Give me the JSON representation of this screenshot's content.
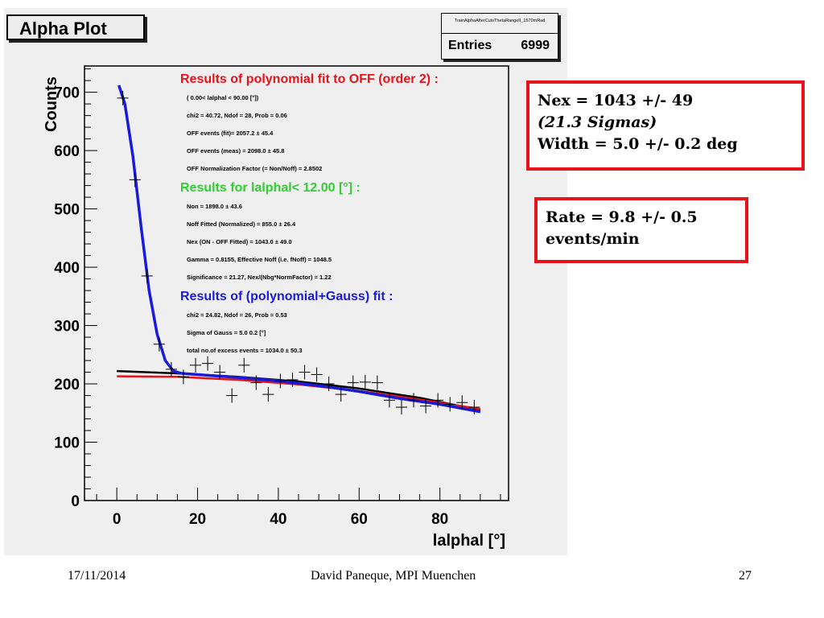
{
  "chart_data": {
    "type": "scatter",
    "title": "Alpha Plot",
    "xlabel": "lalphal  [°]",
    "ylabel": "Counts",
    "xlim": [
      -8,
      97
    ],
    "ylim": [
      0,
      745
    ],
    "xticks": [
      "0",
      "20",
      "40",
      "60",
      "80"
    ],
    "yticks": [
      "0",
      "100",
      "200",
      "300",
      "400",
      "500",
      "600",
      "700"
    ],
    "xtick_values": [
      0,
      20,
      40,
      60,
      80
    ],
    "ytick_values": [
      0,
      100,
      200,
      300,
      400,
      500,
      600,
      700
    ],
    "stats": {
      "name": "TrainAlphaAfterCutsThetaRangeII_1570mRad",
      "entries_label": "Entries",
      "entries_value": "6999"
    },
    "points": {
      "x": [
        1.5,
        4.5,
        7.5,
        10.5,
        13.5,
        16.5,
        19.5,
        22.5,
        25.5,
        28.5,
        31.5,
        34.5,
        37.5,
        40.5,
        43.5,
        46.5,
        49.5,
        52.5,
        55.5,
        58.5,
        61.5,
        64.5,
        67.5,
        70.5,
        73.5,
        76.5,
        79.5,
        82.5,
        85.5,
        88.5
      ],
      "y": [
        690,
        550,
        385,
        268,
        225,
        212,
        232,
        235,
        220,
        180,
        232,
        202,
        182,
        205,
        207,
        220,
        216,
        200,
        182,
        202,
        203,
        202,
        172,
        160,
        172,
        162,
        172,
        165,
        168,
        160
      ]
    },
    "curves": [
      {
        "name": "black",
        "color": "#000000",
        "x": [
          0,
          15,
          30,
          45,
          60,
          75,
          90
        ],
        "y": [
          222,
          218,
          212,
          204,
          192,
          176,
          155
        ]
      },
      {
        "name": "red",
        "color": "#e8121a",
        "x": [
          0,
          15,
          30,
          45,
          60,
          75,
          90
        ],
        "y": [
          213,
          212,
          207,
          199,
          188,
          173,
          157
        ]
      },
      {
        "name": "blue",
        "color": "#1a1ad9",
        "x": [
          0.5,
          2,
          4,
          6,
          8,
          10,
          12,
          14,
          16,
          18,
          22,
          30,
          40,
          50,
          60,
          70,
          80,
          90
        ],
        "y": [
          712,
          680,
          590,
          470,
          360,
          285,
          240,
          222,
          218,
          217,
          215,
          211,
          205,
          197,
          187,
          175,
          165,
          152
        ]
      }
    ],
    "annotations": [
      {
        "text": "Results of polynomial fit to OFF (order  2) :",
        "color": "#e8121a",
        "size": "heading"
      },
      {
        "text": "(  0.00< lalphal < 90.00 [°])",
        "color": "#000000",
        "size": "small"
      },
      {
        "text": "chi2 =   40.72,  Ndof =  28,  Prob =  0.06",
        "color": "#000000",
        "size": "small"
      },
      {
        "text": "OFF events (fit)=  2057.2 ±    45.4",
        "color": "#000000",
        "size": "small"
      },
      {
        "text": "OFF events (meas) =  2098.0 ±    45.8",
        "color": "#000000",
        "size": "small"
      },
      {
        "text": "OFF Normalization Factor (= Non/Noff) = 2.8502",
        "color": "#000000",
        "size": "small"
      },
      {
        "text": "Results for lalphal<  12.00 [°] :",
        "color": "#33cc33",
        "size": "heading"
      },
      {
        "text": "Non =  1898.0 ±    43.6",
        "color": "#000000",
        "size": "small"
      },
      {
        "text": "Noff Fitted (Normalized) =   855.0 ±    26.4",
        "color": "#000000",
        "size": "small"
      },
      {
        "text": "Nex (ON - OFF Fitted) =  1043.0 ±    49.0",
        "color": "#000000",
        "size": "small"
      },
      {
        "text": "Gamma = 0.8155,   Effective Noff (i.e. fNoff) = 1048.5",
        "color": "#000000",
        "size": "small"
      },
      {
        "text": "Significance =  21.27,    Nex/(Nbg*NormFactor) =  1.22",
        "color": "#000000",
        "size": "small"
      },
      {
        "text": "Results of (polynomial+Gauss) fit  :",
        "color": "#1a1ad9",
        "size": "heading"
      },
      {
        "text": "chi2 =   24.82,  Ndof =  26,  Prob =  0.53",
        "color": "#000000",
        "size": "small"
      },
      {
        "text": "Sigma of Gauss    =     5.0    0.2  [°]",
        "color": "#000000",
        "size": "small"
      },
      {
        "text": "total no.of excess events =  1034.0 ±    50.3",
        "color": "#000000",
        "size": "small"
      }
    ]
  },
  "callouts": {
    "nex": {
      "line1": "Nex = 1043 +/-  49",
      "line2": "(21.3 Sigmas)",
      "line3": "Width = 5.0 +/- 0.2 deg"
    },
    "rate": {
      "line1": "Rate = 9.8 +/- 0.5",
      "line2": "events/min"
    }
  },
  "footer": {
    "date": "17/11/2014",
    "author": "David Paneque, MPI Muenchen",
    "page": "27"
  },
  "colors": {
    "callout_border": "#e8121a",
    "plot_background": "#efefef"
  }
}
